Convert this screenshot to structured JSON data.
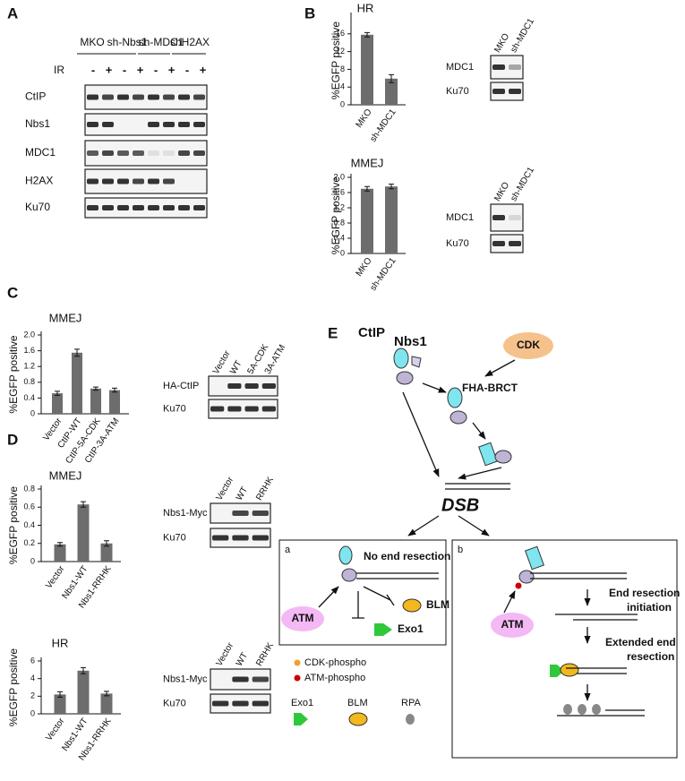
{
  "panels": [
    "A",
    "B",
    "C",
    "D",
    "E"
  ],
  "blots": {
    "A": {
      "groups": [
        "MKO",
        "sh-Nbs1",
        "sh-MDC1",
        "shH2AX"
      ],
      "treatment": "IR",
      "signs": [
        "-",
        "+",
        "-",
        "+",
        "-",
        "+",
        "-",
        "+"
      ],
      "rows": [
        "CtIP",
        "Nbs1",
        "MDC1",
        "H2AX",
        "Ku70"
      ]
    },
    "B_hr": {
      "lanes": [
        "MKO",
        "sh-MDC1"
      ],
      "rows": [
        "MDC1",
        "Ku70"
      ]
    },
    "B_mmej": {
      "lanes": [
        "MKO",
        "sh-MDC1"
      ],
      "rows": [
        "MDC1",
        "Ku70"
      ]
    },
    "C": {
      "lanes": [
        "Vector",
        "WT",
        "5A-CDK",
        "3A-ATM"
      ],
      "rows": [
        "HA-CtIP",
        "Ku70"
      ]
    },
    "D_mmej": {
      "lanes": [
        "Vector",
        "WT",
        "RRHK"
      ],
      "rows": [
        "Nbs1-Myc",
        "Ku70"
      ]
    },
    "D_hr": {
      "lanes": [
        "Vector",
        "WT",
        "RRHK"
      ],
      "rows": [
        "Nbs1-Myc",
        "Ku70"
      ]
    }
  },
  "chart_data": [
    {
      "type": "bar",
      "title": "HR",
      "y_label": "%EGFP positive",
      "categories": [
        "MKO",
        "sh-MDC1"
      ],
      "values": [
        15.8,
        5.9
      ],
      "errors": [
        0.5,
        0.9
      ],
      "color": "#6d6d6d",
      "ylim": [
        0,
        20
      ],
      "yticks": [
        0,
        4,
        8,
        12,
        16
      ]
    },
    {
      "type": "bar",
      "title": "MMEJ",
      "y_label": "%EGFP positive",
      "categories": [
        "MKO",
        "sh-MDC1"
      ],
      "values": [
        1.7,
        1.76
      ],
      "errors": [
        0.06,
        0.06
      ],
      "color": "#6d6d6d",
      "ylim": [
        0,
        2
      ],
      "yticks": [
        0,
        0.4,
        0.8,
        1.2,
        1.6,
        {
          "value": 2,
          "label": "2.0"
        }
      ]
    },
    {
      "type": "bar",
      "title": "MMEJ",
      "y_label": "%EGFP positive",
      "categories": [
        "Vector",
        "CtIP-WT",
        "CtIP-5A-CDK",
        "CtIP-3A-ATM"
      ],
      "values": [
        0.52,
        1.55,
        0.64,
        0.6
      ],
      "errors": [
        0.05,
        0.09,
        0.04,
        0.05
      ],
      "color": "#6d6d6d",
      "ylim": [
        0,
        2
      ],
      "yticks": [
        0,
        0.4,
        0.8,
        1.2,
        1.6,
        {
          "value": 2,
          "label": "2.0"
        }
      ]
    },
    {
      "type": "bar",
      "title": "MMEJ",
      "y_label": "%EGFP positive",
      "categories": [
        "Vector",
        "Nbs1-WT",
        "Nbs1-RRHK"
      ],
      "values": [
        0.19,
        0.63,
        0.2
      ],
      "errors": [
        0.02,
        0.03,
        0.03
      ],
      "color": "#6d6d6d",
      "ylim": [
        0,
        0.8
      ],
      "yticks": [
        0,
        0.2,
        0.4,
        0.6,
        0.8
      ]
    },
    {
      "type": "bar",
      "title": "HR",
      "y_label": "%EGFP positive",
      "categories": [
        "Vector",
        "Nbs1-WT",
        "Nbs1-RRHK"
      ],
      "values": [
        2.2,
        4.9,
        2.3
      ],
      "errors": [
        0.3,
        0.35,
        0.25
      ],
      "color": "#6d6d6d",
      "ylim": [
        0,
        6
      ],
      "yticks": [
        0,
        2,
        4,
        6
      ]
    }
  ],
  "diagram": {
    "ctip": "CtIP",
    "nbs1": "Nbs1",
    "cdk": "CDK",
    "fha_brct": "FHA-BRCT",
    "dsb": "DSB",
    "box_a": {
      "label": "a",
      "no_resection": "No end resection",
      "atm": "ATM",
      "blm": "BLM",
      "exo1": "Exo1"
    },
    "box_b": {
      "label": "b",
      "atm": "ATM",
      "initiation": [
        "End resection",
        "initiation"
      ],
      "extended": [
        "Extended end",
        "resection"
      ]
    },
    "legend": {
      "cdk_phospho": "CDK-phospho",
      "atm_phospho": "ATM-phospho",
      "exo1": "Exo1",
      "blm": "BLM",
      "rpa": "RPA"
    }
  }
}
